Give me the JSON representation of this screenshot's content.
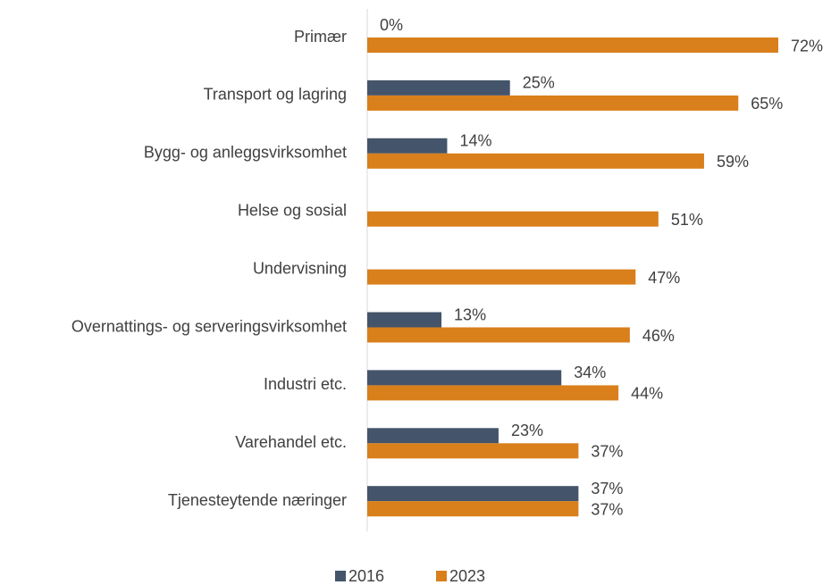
{
  "chart_data": {
    "type": "bar",
    "orientation": "horizontal",
    "categories": [
      "Primær",
      "Transport og lagring",
      "Bygg- og anleggsvirksomhet",
      "Helse og sosial",
      "Undervisning",
      "Overnattings- og serveringsvirksomhet",
      "Industri etc.",
      "Varehandel etc.",
      "Tjenesteytende næringer"
    ],
    "series": [
      {
        "name": "2016",
        "color": "#44546A",
        "values": [
          0,
          25,
          14,
          null,
          null,
          13,
          34,
          23,
          37
        ],
        "value_labels": [
          "0%",
          "25%",
          "14%",
          null,
          null,
          "13%",
          "34%",
          "23%",
          "37%"
        ]
      },
      {
        "name": "2023",
        "color": "#D97F1B",
        "values": [
          72,
          65,
          59,
          51,
          47,
          46,
          44,
          37,
          37
        ],
        "value_labels": [
          "72%",
          "65%",
          "59%",
          "51%",
          "47%",
          "46%",
          "44%",
          "37%",
          "37%"
        ]
      }
    ],
    "legend": "bottom"
  }
}
